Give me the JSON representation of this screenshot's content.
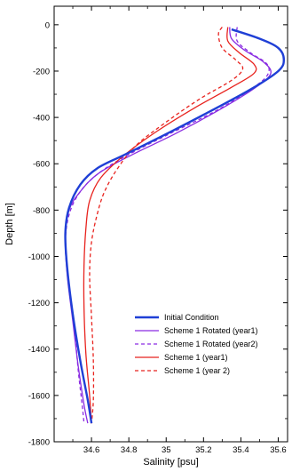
{
  "chart_data": {
    "type": "line",
    "xlabel": "Salinity [psu]",
    "ylabel": "Depth [m]",
    "xlim": [
      34.4,
      35.65
    ],
    "ylim": [
      -1800,
      80
    ],
    "xticks": [
      34.6,
      34.8,
      35,
      35.2,
      35.4,
      35.6
    ],
    "yticks": [
      0,
      -200,
      -400,
      -600,
      -800,
      -1000,
      -1200,
      -1400,
      -1600,
      -1800
    ],
    "grid": false,
    "legend_position": "lower-right",
    "series": [
      {
        "name": "Initial Condition",
        "color": "#1f3fd6",
        "dash": "solid",
        "width": 2.4,
        "points": [
          [
            35.35,
            -20
          ],
          [
            35.5,
            -60
          ],
          [
            35.6,
            -100
          ],
          [
            35.63,
            -150
          ],
          [
            35.6,
            -200
          ],
          [
            35.45,
            -280
          ],
          [
            35.22,
            -380
          ],
          [
            34.98,
            -480
          ],
          [
            34.78,
            -560
          ],
          [
            34.63,
            -620
          ],
          [
            34.54,
            -690
          ],
          [
            34.48,
            -790
          ],
          [
            34.46,
            -900
          ],
          [
            34.47,
            -1050
          ],
          [
            34.5,
            -1250
          ],
          [
            34.54,
            -1450
          ],
          [
            34.58,
            -1620
          ],
          [
            34.6,
            -1720
          ]
        ]
      },
      {
        "name": "Scheme 1 Rotated (year1)",
        "color": "#8a2be2",
        "dash": "solid",
        "width": 1.3,
        "points": [
          [
            35.34,
            -10
          ],
          [
            35.35,
            -60
          ],
          [
            35.42,
            -110
          ],
          [
            35.52,
            -160
          ],
          [
            35.56,
            -210
          ],
          [
            35.48,
            -270
          ],
          [
            35.3,
            -360
          ],
          [
            35.05,
            -470
          ],
          [
            34.82,
            -560
          ],
          [
            34.64,
            -640
          ],
          [
            34.54,
            -720
          ],
          [
            34.48,
            -800
          ],
          [
            34.46,
            -920
          ],
          [
            34.47,
            -1080
          ],
          [
            34.5,
            -1280
          ],
          [
            34.53,
            -1480
          ],
          [
            34.56,
            -1640
          ],
          [
            34.58,
            -1720
          ]
        ]
      },
      {
        "name": "Scheme 1 Rotated (year2)",
        "color": "#8a2be2",
        "dash": "dashed",
        "width": 1.3,
        "points": [
          [
            35.38,
            -10
          ],
          [
            35.38,
            -70
          ],
          [
            35.45,
            -120
          ],
          [
            35.54,
            -170
          ],
          [
            35.54,
            -220
          ],
          [
            35.45,
            -280
          ],
          [
            35.27,
            -370
          ],
          [
            35.02,
            -470
          ],
          [
            34.8,
            -560
          ],
          [
            34.64,
            -640
          ],
          [
            34.54,
            -720
          ],
          [
            34.48,
            -820
          ],
          [
            34.46,
            -950
          ],
          [
            34.48,
            -1120
          ],
          [
            34.51,
            -1320
          ],
          [
            34.53,
            -1500
          ],
          [
            34.55,
            -1640
          ],
          [
            34.56,
            -1720
          ]
        ]
      },
      {
        "name": "Scheme 1 (year1)",
        "color": "#e8231e",
        "dash": "solid",
        "width": 1.3,
        "points": [
          [
            35.33,
            -10
          ],
          [
            35.33,
            -70
          ],
          [
            35.39,
            -120
          ],
          [
            35.47,
            -170
          ],
          [
            35.47,
            -210
          ],
          [
            35.35,
            -270
          ],
          [
            35.15,
            -360
          ],
          [
            34.95,
            -460
          ],
          [
            34.78,
            -560
          ],
          [
            34.65,
            -660
          ],
          [
            34.59,
            -760
          ],
          [
            34.57,
            -880
          ],
          [
            34.56,
            -1040
          ],
          [
            34.56,
            -1220
          ],
          [
            34.57,
            -1420
          ],
          [
            34.59,
            -1600
          ],
          [
            34.6,
            -1720
          ]
        ]
      },
      {
        "name": "Scheme 1 (year 2)",
        "color": "#e8231e",
        "dash": "dashed",
        "width": 1.3,
        "points": [
          [
            35.3,
            -10
          ],
          [
            35.28,
            -40
          ],
          [
            35.3,
            -100
          ],
          [
            35.37,
            -150
          ],
          [
            35.41,
            -190
          ],
          [
            35.35,
            -240
          ],
          [
            35.18,
            -320
          ],
          [
            35.0,
            -420
          ],
          [
            34.84,
            -520
          ],
          [
            34.74,
            -620
          ],
          [
            34.67,
            -720
          ],
          [
            34.63,
            -820
          ],
          [
            34.6,
            -940
          ],
          [
            34.59,
            -1080
          ],
          [
            34.6,
            -1260
          ],
          [
            34.61,
            -1450
          ],
          [
            34.61,
            -1620
          ],
          [
            34.6,
            -1720
          ]
        ]
      }
    ]
  }
}
